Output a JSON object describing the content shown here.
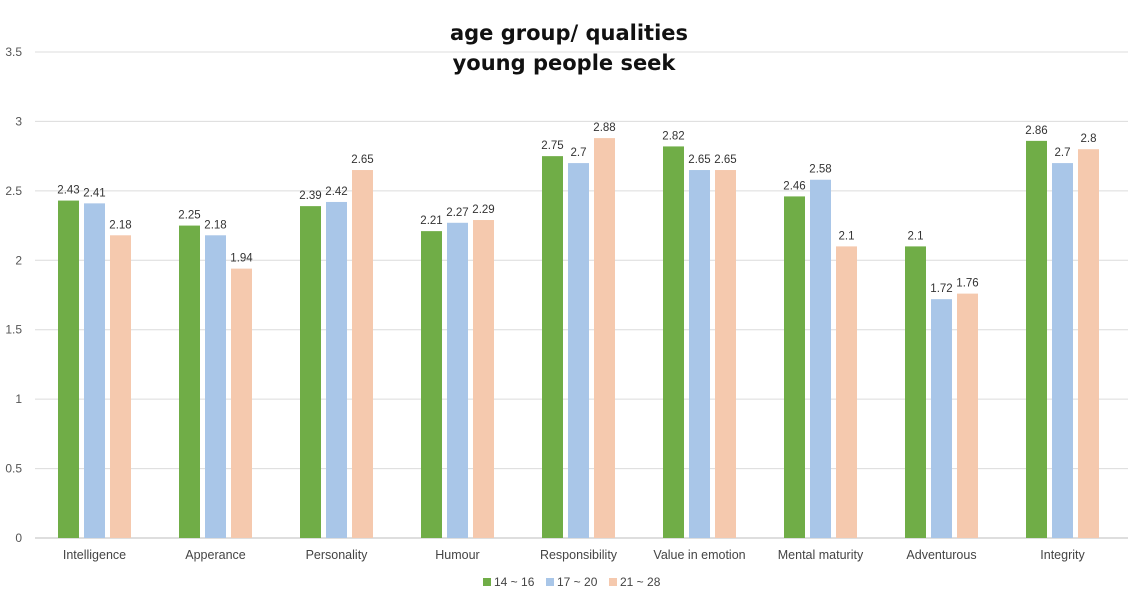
{
  "chart_data": {
    "type": "bar",
    "title_lines": [
      "age group/ qualities",
      "young people seek"
    ],
    "xlabel": "",
    "ylabel": "",
    "ylim": [
      0,
      3.5
    ],
    "yticks": [
      "0",
      "0.5",
      "1",
      "1.5",
      "2",
      "2.5",
      "3",
      "3.5"
    ],
    "grid": true,
    "legend_position": "bottom",
    "categories": [
      "Intelligence",
      "Apperance",
      "Personality",
      "Humour",
      "Responsibility",
      "Value in emotion",
      "Mental maturity",
      "Adventurous",
      "Integrity"
    ],
    "series": [
      {
        "name": "14 ~ 16",
        "color": "#70ad47",
        "values": [
          2.43,
          2.25,
          2.39,
          2.21,
          2.75,
          2.82,
          2.46,
          2.1,
          2.86
        ],
        "labels": [
          "2.43",
          "2.25",
          "2.39",
          "2.21",
          "2.75",
          "2.82",
          "2.46",
          "2.1",
          "2.86"
        ]
      },
      {
        "name": "17 ~ 20",
        "color": "#a9c6e8",
        "values": [
          2.41,
          2.18,
          2.42,
          2.27,
          2.7,
          2.65,
          2.58,
          1.72,
          2.7
        ],
        "labels": [
          "2.41",
          "2.18",
          "2.42",
          "2.27",
          "2.7",
          "2.65",
          "2.58",
          "1.72",
          "2.7"
        ]
      },
      {
        "name": "21 ~ 28",
        "color": "#f5c9ae",
        "values": [
          2.18,
          1.94,
          2.65,
          2.29,
          2.88,
          2.65,
          2.1,
          1.76,
          2.8
        ],
        "labels": [
          "2.18",
          "1.94",
          "2.65",
          "2.29",
          "2.88",
          "2.65",
          "2.1",
          "1.76",
          "2.8"
        ]
      }
    ]
  }
}
